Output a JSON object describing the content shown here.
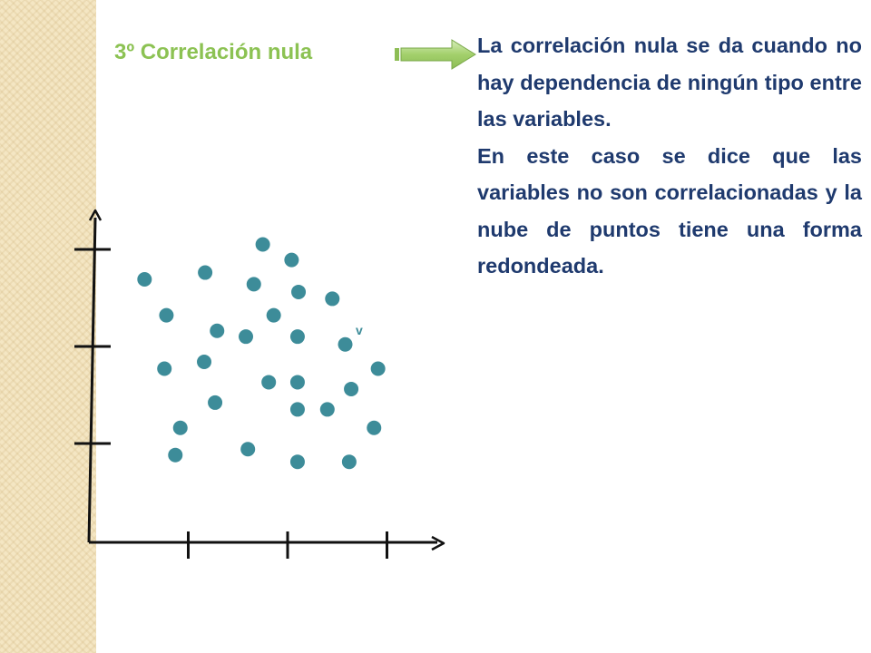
{
  "slide": {
    "title": "3º Correlación nula",
    "paragraphs": [
      "La correlación nula se da cuando no hay dependencia de ningún tipo entre las variables.",
      "En este caso se dice que las variables no son correlacionadas y la nube de puntos tiene una forma redondeada."
    ]
  },
  "colors": {
    "title": "#8cc253",
    "text": "#1f3a6e",
    "points": "#3d8c99",
    "arrow": "#a3d06c",
    "strip": "#f4e6c3"
  },
  "icons": {
    "pointer": "right-arrow-icon"
  },
  "chart_data": {
    "type": "scatter",
    "title": "",
    "xlabel": "",
    "ylabel": "",
    "xlim": [
      0,
      4
    ],
    "ylim": [
      0,
      4
    ],
    "x_ticks": [
      1,
      2,
      3
    ],
    "y_ticks": [
      1,
      2,
      3
    ],
    "grid": false,
    "stray_labels": [
      "v"
    ],
    "points": [
      {
        "x": 1.75,
        "y": 3.07
      },
      {
        "x": 2.04,
        "y": 2.91
      },
      {
        "x": 0.56,
        "y": 2.71
      },
      {
        "x": 1.17,
        "y": 2.78
      },
      {
        "x": 1.66,
        "y": 2.66
      },
      {
        "x": 2.11,
        "y": 2.58
      },
      {
        "x": 2.45,
        "y": 2.51
      },
      {
        "x": 0.78,
        "y": 2.34
      },
      {
        "x": 1.86,
        "y": 2.34
      },
      {
        "x": 1.29,
        "y": 2.18
      },
      {
        "x": 1.58,
        "y": 2.12
      },
      {
        "x": 2.1,
        "y": 2.12
      },
      {
        "x": 2.58,
        "y": 2.04
      },
      {
        "x": 0.76,
        "y": 1.79
      },
      {
        "x": 1.16,
        "y": 1.86
      },
      {
        "x": 2.91,
        "y": 1.79
      },
      {
        "x": 1.81,
        "y": 1.65
      },
      {
        "x": 2.1,
        "y": 1.65
      },
      {
        "x": 2.64,
        "y": 1.58
      },
      {
        "x": 1.27,
        "y": 1.44
      },
      {
        "x": 2.1,
        "y": 1.37
      },
      {
        "x": 2.4,
        "y": 1.37
      },
      {
        "x": 0.92,
        "y": 1.18
      },
      {
        "x": 2.87,
        "y": 1.18
      },
      {
        "x": 0.87,
        "y": 0.9
      },
      {
        "x": 1.6,
        "y": 0.96
      },
      {
        "x": 2.1,
        "y": 0.83
      },
      {
        "x": 2.62,
        "y": 0.83
      }
    ]
  }
}
